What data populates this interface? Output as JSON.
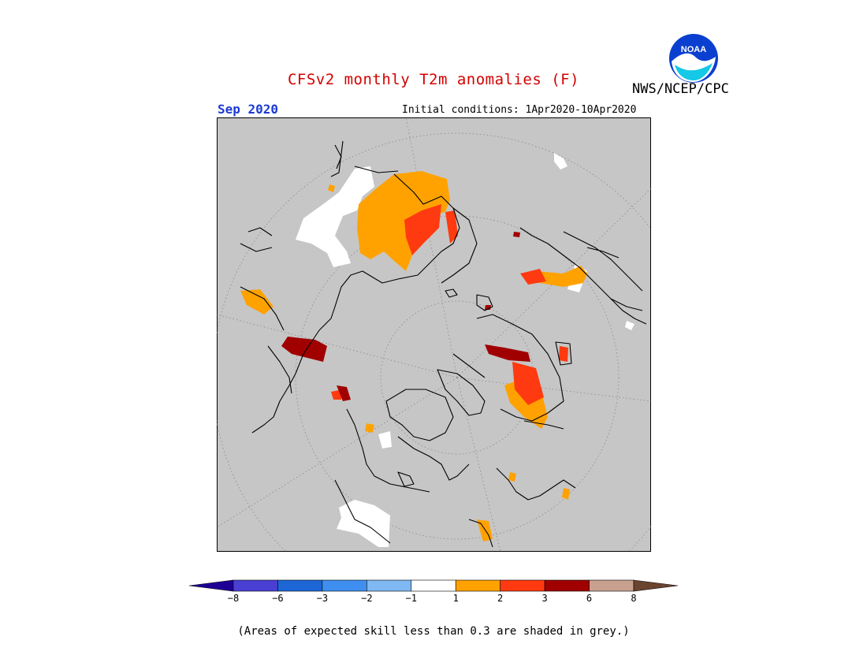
{
  "title": "CFSv2 monthly T2m anomalies (F)",
  "agency": "NWS/NCEP/CPC",
  "logo_text": "NOAA",
  "month": "Sep 2020",
  "initial_conditions": "Initial conditions: 1Apr2020-10Apr2020",
  "footnote": "(Areas of expected skill less than 0.3 are shaded in grey.)",
  "colors": {
    "title": "#d40000",
    "month": "#1c3bd4",
    "grey_low_skill": "#c6c6c6",
    "coast": "#000000"
  },
  "legend": {
    "ticks": [
      "-8",
      "-6",
      "-3",
      "-2",
      "-1",
      "1",
      "2",
      "3",
      "6",
      "8"
    ],
    "bins": [
      {
        "range": "< -8",
        "color": "#1e0096"
      },
      {
        "range": "-8 to -6",
        "color": "#4a3fd3"
      },
      {
        "range": "-6 to -3",
        "color": "#1c66d6"
      },
      {
        "range": "-3 to -2",
        "color": "#3f8ff0"
      },
      {
        "range": "-2 to -1",
        "color": "#7fb8f3"
      },
      {
        "range": "-1 to 1",
        "color": "#ffffff"
      },
      {
        "range": "1 to 2",
        "color": "#ffa200"
      },
      {
        "range": "2 to 3",
        "color": "#ff3a10"
      },
      {
        "range": "3 to 6",
        "color": "#a00000"
      },
      {
        "range": "6 to 8",
        "color": "#c8a090"
      },
      {
        "range": "> 8",
        "color": "#6b4430"
      }
    ]
  }
}
